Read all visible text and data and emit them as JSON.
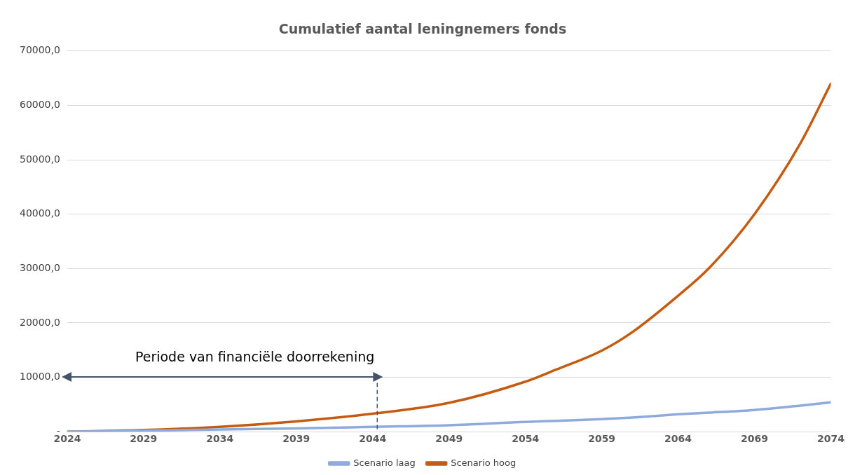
{
  "chart_data": {
    "type": "line",
    "title": "Cumulatief aantal leningnemers fonds",
    "x": [
      2024,
      2029,
      2034,
      2039,
      2044,
      2049,
      2054,
      2056,
      2059,
      2061,
      2064,
      2066,
      2069,
      2072,
      2074
    ],
    "xlim": [
      2024,
      2074
    ],
    "xticks": [
      2024,
      2029,
      2034,
      2039,
      2044,
      2049,
      2054,
      2059,
      2064,
      2069,
      2074
    ],
    "ylim": [
      0,
      70000
    ],
    "yticks": [
      {
        "value": 0,
        "label": "-"
      },
      {
        "value": 10000,
        "label": "10000,0"
      },
      {
        "value": 20000,
        "label": "20000,0"
      },
      {
        "value": 30000,
        "label": "30000,0"
      },
      {
        "value": 40000,
        "label": "40000,0"
      },
      {
        "value": 50000,
        "label": "50000,0"
      },
      {
        "value": 60000,
        "label": "60000,0"
      },
      {
        "value": 70000,
        "label": "70000,0"
      }
    ],
    "series": [
      {
        "name": "Scenario laag",
        "color": "#8faadc",
        "values": [
          0,
          200,
          400,
          600,
          900,
          1200,
          1800,
          2000,
          2300,
          2600,
          3200,
          3500,
          4000,
          4800,
          5400
        ]
      },
      {
        "name": "Scenario hoog",
        "color": "#c55a11",
        "values": [
          0,
          300,
          900,
          1900,
          3300,
          5300,
          9200,
          11400,
          14900,
          18300,
          25000,
          30000,
          40000,
          53000,
          64000
        ]
      }
    ],
    "ref_lines": [
      {
        "axis": "x",
        "value": 2044.3,
        "label": "Periode van financiële doorrekening",
        "color": "#44546a",
        "line_style": "dashed"
      }
    ],
    "grid": "y",
    "legend": "bottom",
    "marker": "none",
    "line_style": "solid"
  }
}
